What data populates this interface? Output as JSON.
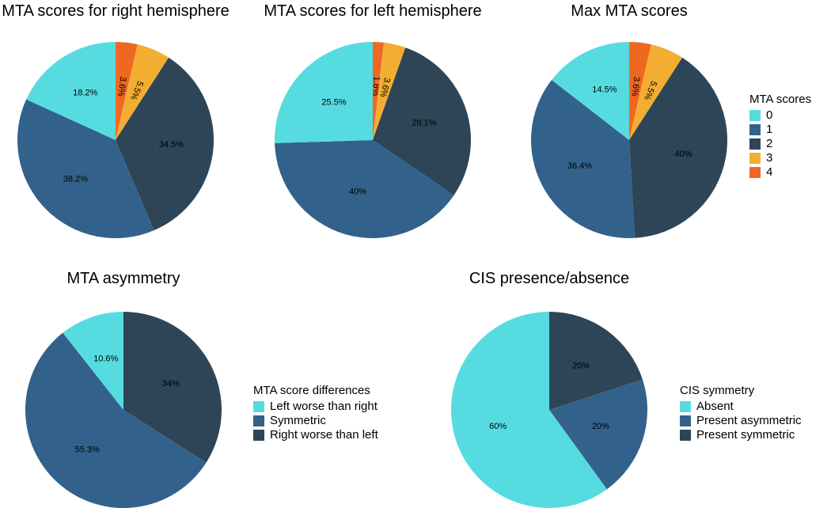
{
  "palette": {
    "c0": "#56DCE0",
    "c1": "#32628B",
    "c2": "#2D4557",
    "c3": "#F3AE32",
    "c4": "#EF6822"
  },
  "chart_data": [
    {
      "id": "right",
      "type": "pie",
      "title": "MTA scores for right hemisphere",
      "slices": [
        {
          "category": "4",
          "value": 3.6,
          "label": "3.6%",
          "color_key": "c4"
        },
        {
          "category": "3",
          "value": 5.5,
          "label": "5.5%",
          "color_key": "c3"
        },
        {
          "category": "2",
          "value": 34.5,
          "label": "34.5%",
          "color_key": "c2"
        },
        {
          "category": "1",
          "value": 38.2,
          "label": "38.2%",
          "color_key": "c1"
        },
        {
          "category": "0",
          "value": 18.2,
          "label": "18.2%",
          "color_key": "c0"
        }
      ]
    },
    {
      "id": "left",
      "type": "pie",
      "title": "MTA scores for left hemisphere",
      "slices": [
        {
          "category": "4",
          "value": 1.8,
          "label": "1.8%",
          "color_key": "c4"
        },
        {
          "category": "3",
          "value": 3.6,
          "label": "3.6%",
          "color_key": "c3"
        },
        {
          "category": "2",
          "value": 29.1,
          "label": "29.1%",
          "color_key": "c2"
        },
        {
          "category": "1",
          "value": 40,
          "label": "40%",
          "color_key": "c1"
        },
        {
          "category": "0",
          "value": 25.5,
          "label": "25.5%",
          "color_key": "c0"
        }
      ]
    },
    {
      "id": "max",
      "type": "pie",
      "title": "Max MTA scores",
      "slices": [
        {
          "category": "4",
          "value": 3.6,
          "label": "3.6%",
          "color_key": "c4"
        },
        {
          "category": "3",
          "value": 5.5,
          "label": "5.5%",
          "color_key": "c3"
        },
        {
          "category": "2",
          "value": 40,
          "label": "40%",
          "color_key": "c2"
        },
        {
          "category": "1",
          "value": 36.4,
          "label": "36.4%",
          "color_key": "c1"
        },
        {
          "category": "0",
          "value": 14.5,
          "label": "14.5%",
          "color_key": "c0"
        }
      ]
    },
    {
      "id": "asym",
      "type": "pie",
      "title": "MTA asymmetry",
      "slices": [
        {
          "category": "Right worse than left",
          "value": 34,
          "label": "34%",
          "color_key": "c2"
        },
        {
          "category": "Symmetric",
          "value": 55.3,
          "label": "55.3%",
          "color_key": "c1"
        },
        {
          "category": "Left worse than right",
          "value": 10.6,
          "label": "10.6%",
          "color_key": "c0"
        }
      ]
    },
    {
      "id": "cis",
      "type": "pie",
      "title": "CIS presence/absence",
      "slices": [
        {
          "category": "Present symmetric",
          "value": 20,
          "label": "20%",
          "color_key": "c2"
        },
        {
          "category": "Present asymmetric",
          "value": 20,
          "label": "20%",
          "color_key": "c1"
        },
        {
          "category": "Absent",
          "value": 60,
          "label": "60%",
          "color_key": "c0"
        }
      ]
    }
  ],
  "legends": [
    {
      "id": "scores",
      "title": "MTA scores",
      "items": [
        {
          "label": "0",
          "color_key": "c0"
        },
        {
          "label": "1",
          "color_key": "c1"
        },
        {
          "label": "2",
          "color_key": "c2"
        },
        {
          "label": "3",
          "color_key": "c3"
        },
        {
          "label": "4",
          "color_key": "c4"
        }
      ]
    },
    {
      "id": "diff",
      "title": "MTA score differences",
      "items": [
        {
          "label": "Left worse than right",
          "color_key": "c0"
        },
        {
          "label": "Symmetric",
          "color_key": "c1"
        },
        {
          "label": "Right worse than left",
          "color_key": "c2"
        }
      ]
    },
    {
      "id": "cis",
      "title": "CIS symmetry",
      "items": [
        {
          "label": "Absent",
          "color_key": "c0"
        },
        {
          "label": "Present asymmetric",
          "color_key": "c1"
        },
        {
          "label": "Present symmetric",
          "color_key": "c2"
        }
      ]
    }
  ]
}
